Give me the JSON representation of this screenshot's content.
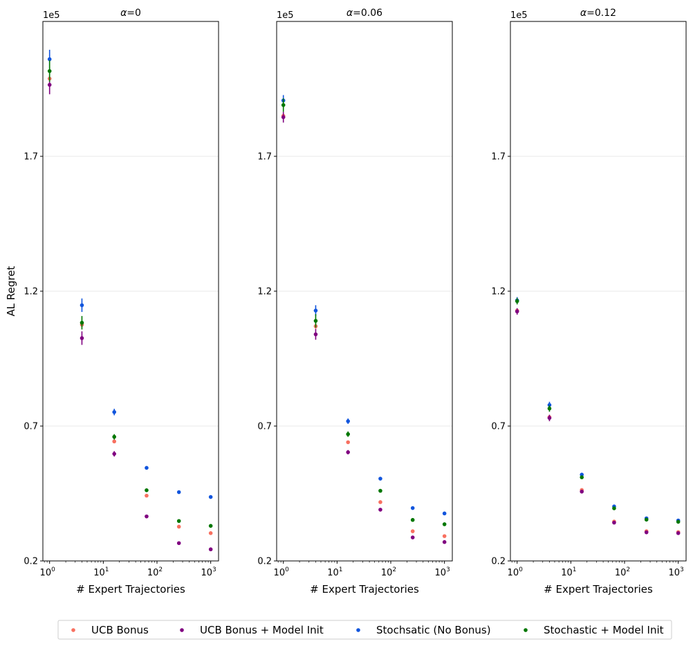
{
  "chart_data": {
    "type": "scatter",
    "x_scale": "log",
    "x": [
      1,
      4,
      16,
      64,
      256,
      1000
    ],
    "xlim": [
      0.75,
      1400
    ],
    "x_ticks": [
      {
        "value": 1,
        "base": "10",
        "exp": "0"
      },
      {
        "value": 10,
        "base": "10",
        "exp": "1"
      },
      {
        "value": 100,
        "base": "10",
        "exp": "2"
      },
      {
        "value": 1000,
        "base": "10",
        "exp": "3"
      }
    ],
    "ylim": [
      0.2,
      2.2
    ],
    "y_ticks": [
      {
        "value": 0.2,
        "label": "0.2"
      },
      {
        "value": 0.7,
        "label": "0.7"
      },
      {
        "value": 1.2,
        "label": "1.2"
      },
      {
        "value": 1.7,
        "label": "1.7"
      }
    ],
    "y_offset_label": "1e5",
    "xlabel": "# Expert Trajectories",
    "ylabel": "AL Regret",
    "grid": "horizontal",
    "legend": {
      "location": "bottom",
      "items": [
        {
          "label": "UCB Bonus",
          "color": "#f87060"
        },
        {
          "label": "UCB Bonus + Model Init",
          "color": "#800080"
        },
        {
          "label": "Stochsatic (No Bonus)",
          "color": "#1155dd"
        },
        {
          "label": "Stochastic + Model Init",
          "color": "#007700"
        }
      ]
    },
    "panels": [
      {
        "title_prefix": "α",
        "title_suffix": "=0",
        "series": [
          {
            "name": "UCB Bonus",
            "color": "#f87060",
            "values": [
              1.988,
              1.076,
              0.643,
              0.442,
              0.327,
              0.303
            ],
            "errors": [
              0.02,
              0.01,
              0.005,
              0.003,
              0.003,
              0.003
            ]
          },
          {
            "name": "UCB Bonus + Model Init",
            "color": "#800080",
            "values": [
              1.965,
              1.026,
              0.597,
              0.365,
              0.266,
              0.243
            ],
            "errors": [
              0.035,
              0.025,
              0.01,
              0.005,
              0.003,
              0.003
            ]
          },
          {
            "name": "Stochsatic (No Bonus)",
            "color": "#1155dd",
            "values": [
              2.06,
              1.148,
              0.752,
              0.545,
              0.455,
              0.437
            ],
            "errors": [
              0.035,
              0.025,
              0.012,
              0.005,
              0.005,
              0.005
            ]
          },
          {
            "name": "Stochastic + Model Init",
            "color": "#007700",
            "values": [
              2.016,
              1.083,
              0.66,
              0.462,
              0.348,
              0.33
            ],
            "errors": [
              0.04,
              0.025,
              0.01,
              0.005,
              0.003,
              0.003
            ]
          }
        ]
      },
      {
        "title_prefix": "α",
        "title_suffix": "=0.06",
        "series": [
          {
            "name": "UCB Bonus",
            "color": "#f87060",
            "values": [
              1.85,
              1.07,
              0.64,
              0.418,
              0.31,
              0.292
            ],
            "errors": [
              0.01,
              0.01,
              0.005,
              0.003,
              0.003,
              0.003
            ]
          },
          {
            "name": "UCB Bonus + Model Init",
            "color": "#800080",
            "values": [
              1.845,
              1.04,
              0.603,
              0.39,
              0.287,
              0.27
            ],
            "errors": [
              0.02,
              0.02,
              0.008,
              0.004,
              0.003,
              0.003
            ]
          },
          {
            "name": "Stochsatic (No Bonus)",
            "color": "#1155dd",
            "values": [
              1.907,
              1.128,
              0.718,
              0.505,
              0.396,
              0.376
            ],
            "errors": [
              0.02,
              0.02,
              0.01,
              0.005,
              0.004,
              0.004
            ]
          },
          {
            "name": "Stochastic + Model Init",
            "color": "#007700",
            "values": [
              1.89,
              1.09,
              0.67,
              0.46,
              0.352,
              0.336
            ],
            "errors": [
              0.025,
              0.025,
              0.01,
              0.005,
              0.004,
              0.004
            ]
          }
        ]
      },
      {
        "title_prefix": "α",
        "title_suffix": "=0.12",
        "series": [
          {
            "name": "UCB Bonus",
            "color": "#f87060",
            "values": [
              1.128,
              0.733,
              0.463,
              0.346,
              0.31,
              0.307
            ],
            "errors": [
              0.008,
              0.008,
              0.004,
              0.003,
              0.003,
              0.003
            ]
          },
          {
            "name": "UCB Bonus + Model Init",
            "color": "#800080",
            "values": [
              1.125,
              0.73,
              0.457,
              0.342,
              0.306,
              0.303
            ],
            "errors": [
              0.012,
              0.012,
              0.005,
              0.003,
              0.003,
              0.003
            ]
          },
          {
            "name": "Stochsatic (No Bonus)",
            "color": "#1155dd",
            "values": [
              1.166,
              0.778,
              0.52,
              0.402,
              0.358,
              0.35
            ],
            "errors": [
              0.012,
              0.012,
              0.005,
              0.004,
              0.004,
              0.004
            ]
          },
          {
            "name": "Stochastic + Model Init",
            "color": "#007700",
            "values": [
              1.163,
              0.765,
              0.51,
              0.395,
              0.353,
              0.345
            ],
            "errors": [
              0.012,
              0.012,
              0.005,
              0.004,
              0.004,
              0.004
            ]
          }
        ]
      }
    ]
  }
}
